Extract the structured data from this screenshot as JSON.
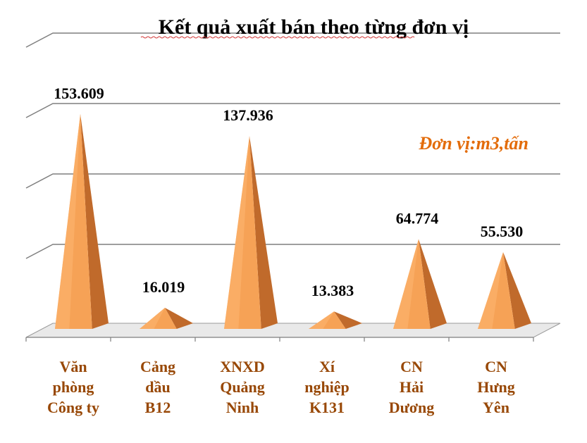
{
  "chart_data": {
    "type": "bar",
    "title": "Kết quả xuất bán theo từng đơn vị",
    "unit_label": "Đơn vị:m3,tấn",
    "categories": [
      [
        "Văn",
        "phòng",
        "Công ty"
      ],
      [
        "Cảng",
        "dầu",
        "B12"
      ],
      [
        "XNXD",
        "Quảng",
        "Ninh"
      ],
      [
        "Xí",
        "nghiệp",
        "K131"
      ],
      [
        "CN",
        "Hải",
        "Dương"
      ],
      [
        "CN",
        "Hưng",
        "Yên"
      ]
    ],
    "values": [
      153609,
      16019,
      137936,
      13383,
      64774,
      55530
    ],
    "value_labels": [
      "153.609",
      "16.019",
      "137.936",
      "13.383",
      "64.774",
      "55.530"
    ],
    "ylim": [
      0,
      200000
    ],
    "grid": true,
    "bar_shape": "3d-pyramid"
  },
  "colors": {
    "pyramid_light": "#fdb673",
    "pyramid_mid": "#f6a256",
    "pyramid_dark": "#c06a2b",
    "category_text": "#984806",
    "unit_text": "#e36c0a",
    "floor": "#e9e9e9"
  }
}
